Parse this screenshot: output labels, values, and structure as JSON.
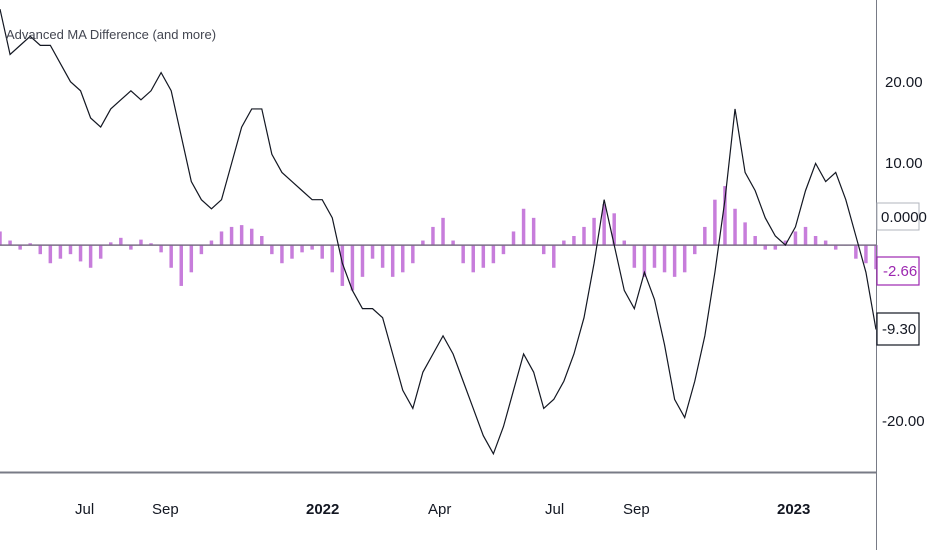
{
  "indicator": {
    "title": "Advanced MA Difference (and more)"
  },
  "colors": {
    "line": "#131722",
    "histogram": "#c77ddb",
    "zero_line": "#7b6e86",
    "axis": "#787b86",
    "badge_border": "#131722",
    "badge_purple": "#9c27b0"
  },
  "price_axis": {
    "ticks": [
      "20.00",
      "10.00",
      "-20.00"
    ]
  },
  "badges": {
    "zero": "0.0000",
    "histogram_last": "-2.66",
    "line_last": "-9.30"
  },
  "time_axis": {
    "labels": [
      {
        "text": "Jul",
        "bold": false
      },
      {
        "text": "Sep",
        "bold": false
      },
      {
        "text": "2022",
        "bold": true
      },
      {
        "text": "Apr",
        "bold": false
      },
      {
        "text": "Jul",
        "bold": false
      },
      {
        "text": "Sep",
        "bold": false
      },
      {
        "text": "2023",
        "bold": true
      }
    ]
  },
  "chart_data": {
    "type": "line",
    "ylim": [
      -25,
      27
    ],
    "grid": false,
    "series": [
      {
        "kind": "line",
        "x": [
          0,
          10,
          20,
          30,
          40,
          50,
          60,
          70,
          80,
          90,
          100,
          110,
          120,
          130,
          140,
          150,
          160,
          170,
          180,
          190,
          200,
          210,
          220,
          230,
          240,
          250,
          260,
          270,
          280,
          290,
          300,
          310,
          320,
          330,
          340,
          350,
          360,
          370,
          380,
          390,
          400,
          410,
          420,
          430,
          440,
          450,
          460,
          470,
          480,
          490,
          500,
          510,
          520,
          530,
          540,
          550,
          560,
          570,
          580,
          590,
          600,
          610,
          620,
          630,
          640,
          650,
          660,
          670,
          680,
          690,
          700,
          710,
          720,
          730,
          740,
          750,
          760,
          770,
          780,
          790,
          800,
          810,
          820,
          830,
          840,
          850,
          860,
          870
        ],
        "values": [
          26,
          21,
          22,
          23,
          22,
          22,
          20,
          18,
          17,
          14,
          13,
          15,
          16,
          17,
          16,
          17,
          19,
          17,
          12,
          7,
          5,
          4,
          5,
          9,
          13,
          15,
          15,
          10,
          8,
          7,
          6,
          5,
          5,
          3,
          -2,
          -5,
          -7,
          -7,
          -8,
          -12,
          -16,
          -18,
          -14,
          -12,
          -10,
          -12,
          -15,
          -18,
          -21,
          -23,
          -20,
          -16,
          -12,
          -14,
          -18,
          -17,
          -15,
          -12,
          -8,
          -2,
          5,
          0,
          -5,
          -7,
          -3,
          -6,
          -11,
          -17,
          -19,
          -15,
          -10,
          -3,
          5,
          15,
          8,
          6,
          3,
          1,
          0,
          2,
          6,
          9,
          7,
          8,
          5,
          1,
          -3,
          -9.3
        ]
      },
      {
        "kind": "histogram",
        "x": [
          0,
          10,
          20,
          30,
          40,
          50,
          60,
          70,
          80,
          90,
          100,
          110,
          120,
          130,
          140,
          150,
          160,
          170,
          180,
          190,
          200,
          210,
          220,
          230,
          240,
          250,
          260,
          270,
          280,
          290,
          300,
          310,
          320,
          330,
          340,
          350,
          360,
          370,
          380,
          390,
          400,
          410,
          420,
          430,
          440,
          450,
          460,
          470,
          480,
          490,
          500,
          510,
          520,
          530,
          540,
          550,
          560,
          570,
          580,
          590,
          600,
          610,
          620,
          630,
          640,
          650,
          660,
          670,
          680,
          690,
          700,
          710,
          720,
          730,
          740,
          750,
          760,
          770,
          780,
          790,
          800,
          810,
          820,
          830,
          840,
          850,
          860,
          870
        ],
        "values": [
          1.5,
          0.5,
          -0.5,
          0.2,
          -1.0,
          -2.0,
          -1.5,
          -1.0,
          -1.8,
          -2.5,
          -1.5,
          0.3,
          0.8,
          -0.5,
          0.6,
          0.2,
          -0.8,
          -2.5,
          -4.5,
          -3.0,
          -1.0,
          0.5,
          1.5,
          2.0,
          2.2,
          1.8,
          1.0,
          -1.0,
          -2.0,
          -1.5,
          -0.8,
          -0.5,
          -1.5,
          -3.0,
          -4.5,
          -5.0,
          -3.5,
          -1.5,
          -2.5,
          -3.5,
          -3.0,
          -2.0,
          0.5,
          2.0,
          3.0,
          0.5,
          -2.0,
          -3.0,
          -2.5,
          -2.0,
          -1.0,
          1.5,
          4.0,
          3.0,
          -1.0,
          -2.5,
          0.5,
          1.0,
          2.0,
          3.0,
          4.5,
          3.5,
          0.5,
          -2.5,
          -3.5,
          -2.5,
          -3.0,
          -3.5,
          -3.0,
          -1.0,
          2.0,
          5.0,
          6.5,
          4.0,
          2.5,
          1.0,
          -0.5,
          -0.5,
          0.5,
          1.5,
          2.0,
          1.0,
          0.5,
          -0.5,
          0,
          -1.5,
          -2.0,
          -2.66
        ]
      }
    ]
  }
}
